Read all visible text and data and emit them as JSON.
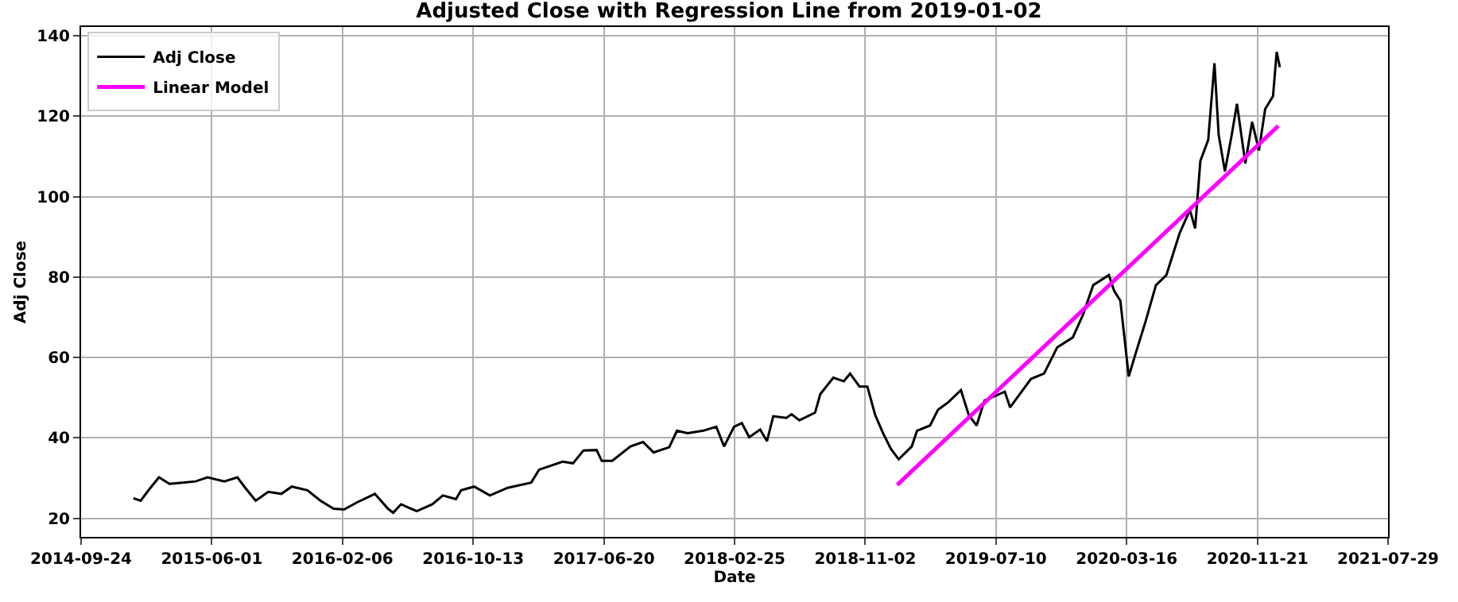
{
  "chart_data": {
    "type": "line",
    "title": "Adjusted Close with Regression Line from 2019-01-02",
    "xlabel": "Date",
    "ylabel": "Adj Close",
    "series": [
      {
        "name": "Adj Close",
        "color": "#000000",
        "x": [
          "2015-01-02",
          "2015-01-16",
          "2015-01-31",
          "2015-02-20",
          "2015-03-12",
          "2015-04-06",
          "2015-05-01",
          "2015-05-24",
          "2015-06-25",
          "2015-07-20",
          "2015-08-04",
          "2015-08-24",
          "2015-09-17",
          "2015-10-12",
          "2015-11-01",
          "2015-12-01",
          "2015-12-26",
          "2016-01-20",
          "2016-02-09",
          "2016-03-05",
          "2016-04-08",
          "2016-05-03",
          "2016-05-13",
          "2016-05-28",
          "2016-06-27",
          "2016-07-27",
          "2016-08-16",
          "2016-09-10",
          "2016-09-20",
          "2016-10-15",
          "2016-11-14",
          "2016-12-18",
          "2017-02-01",
          "2017-02-16",
          "2017-04-02",
          "2017-04-22",
          "2017-05-12",
          "2017-06-06",
          "2017-06-16",
          "2017-07-06",
          "2017-08-10",
          "2017-09-03",
          "2017-09-23",
          "2017-10-23",
          "2017-11-07",
          "2017-11-27",
          "2017-12-27",
          "2018-01-21",
          "2018-02-05",
          "2018-02-24",
          "2018-03-11",
          "2018-03-25",
          "2018-04-15",
          "2018-04-28",
          "2018-05-10",
          "2018-06-04",
          "2018-06-14",
          "2018-06-29",
          "2018-07-29",
          "2018-08-08",
          "2018-09-02",
          "2018-09-22",
          "2018-10-04",
          "2018-10-22",
          "2018-11-06",
          "2018-11-21",
          "2018-12-06",
          "2018-12-21",
          "2019-01-05",
          "2019-01-30",
          "2019-02-09",
          "2019-03-06",
          "2019-03-21",
          "2019-04-10",
          "2019-05-04",
          "2019-05-19",
          "2019-06-03",
          "2019-06-18",
          "2019-07-27",
          "2019-08-06",
          "2019-09-15",
          "2019-10-10",
          "2019-11-04",
          "2019-12-04",
          "2019-12-24",
          "2020-01-12",
          "2020-02-11",
          "2020-02-21",
          "2020-03-04",
          "2020-03-20",
          "2020-04-01",
          "2020-04-21",
          "2020-05-11",
          "2020-05-31",
          "2020-06-25",
          "2020-07-15",
          "2020-07-25",
          "2020-08-04",
          "2020-08-19",
          "2020-08-31",
          "2020-09-08",
          "2020-09-20",
          "2020-10-03",
          "2020-10-13",
          "2020-10-29",
          "2020-11-11",
          "2020-11-24",
          "2020-12-06",
          "2020-12-21",
          "2020-12-28",
          "2021-01-03"
        ],
        "values": [
          25.0,
          24.4,
          27.0,
          30.2,
          28.6,
          28.9,
          29.2,
          30.2,
          29.2,
          30.2,
          27.6,
          24.4,
          26.6,
          26.1,
          27.9,
          27.0,
          24.4,
          22.4,
          22.2,
          24.0,
          26.1,
          22.4,
          21.4,
          23.5,
          21.8,
          23.5,
          25.7,
          24.8,
          27.0,
          27.9,
          25.7,
          27.6,
          28.9,
          32.1,
          34.1,
          33.7,
          36.9,
          37.0,
          34.3,
          34.3,
          37.9,
          39.0,
          36.4,
          37.7,
          41.8,
          41.2,
          41.8,
          42.8,
          37.9,
          42.8,
          43.7,
          40.2,
          42.1,
          39.2,
          45.4,
          45.0,
          45.9,
          44.4,
          46.3,
          50.9,
          55.0,
          54.1,
          56.0,
          52.8,
          52.8,
          45.7,
          41.2,
          37.3,
          34.7,
          37.9,
          41.8,
          43.1,
          47.0,
          48.9,
          51.9,
          45.7,
          43.1,
          49.3,
          51.5,
          47.6,
          54.7,
          56.0,
          62.5,
          65.0,
          70.8,
          78.0,
          80.5,
          76.6,
          74.1,
          55.3,
          60.5,
          68.9,
          78.0,
          80.5,
          90.8,
          96.7,
          92.1,
          108.9,
          114.1,
          133.2,
          115.4,
          106.3,
          115.4,
          123.1,
          108.3,
          118.6,
          111.5,
          121.8,
          125.0,
          136.0,
          132.2
        ]
      },
      {
        "name": "Linear Model",
        "color": "#ff00ff",
        "x": [
          "2019-01-02",
          "2020-12-31"
        ],
        "values": [
          28.3,
          117.6
        ]
      }
    ],
    "xlim": [
      "2014-09-24",
      "2021-07-29"
    ],
    "xticks": [
      "2014-09-24",
      "2015-06-01",
      "2016-02-06",
      "2016-10-13",
      "2017-06-20",
      "2018-02-25",
      "2018-11-02",
      "2019-07-10",
      "2020-03-16",
      "2020-11-21",
      "2021-07-29"
    ],
    "ylim": [
      15.4,
      142.2
    ],
    "yticks": [
      20,
      40,
      60,
      80,
      100,
      120,
      140
    ],
    "grid": true,
    "legend": "top left",
    "line_style": "solid",
    "marker": "none"
  }
}
